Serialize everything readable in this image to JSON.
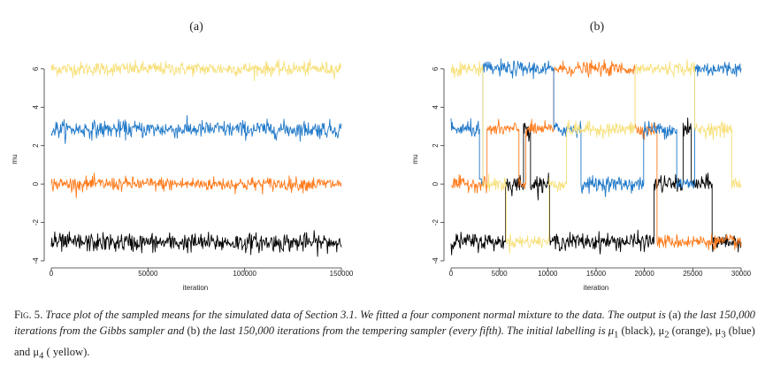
{
  "chart_data": [
    {
      "type": "line",
      "panel_label": "(a)",
      "xlabel": "iteration",
      "ylabel": "mu",
      "xlim": [
        0,
        150000
      ],
      "ylim": [
        -4,
        6.5
      ],
      "x_ticks": [
        0,
        50000,
        100000,
        150000
      ],
      "x_tick_labels": [
        "0",
        "50000",
        "100000",
        "150000"
      ],
      "y_ticks": [
        -4,
        -2,
        0,
        2,
        4,
        6
      ],
      "y_tick_labels": [
        "-4",
        "-2",
        "0",
        "2",
        "4",
        "6"
      ],
      "grid": false,
      "series": [
        {
          "color": "#f7e07a",
          "segments": [
            [
              0,
              150000,
              6.0
            ]
          ],
          "noise": 0.18
        },
        {
          "color": "#1f78c8",
          "segments": [
            [
              0,
              150000,
              2.85
            ]
          ],
          "noise": 0.22
        },
        {
          "color": "#ff7a1a",
          "segments": [
            [
              0,
              150000,
              0.0
            ]
          ],
          "noise": 0.18
        },
        {
          "color": "#000000",
          "segments": [
            [
              0,
              150000,
              -3.05
            ]
          ],
          "noise": 0.24
        }
      ]
    },
    {
      "type": "line",
      "panel_label": "(b)",
      "xlabel": "iteration",
      "ylabel": "mu",
      "xlim": [
        0,
        30000
      ],
      "ylim": [
        -4,
        6.5
      ],
      "x_ticks": [
        0,
        5000,
        10000,
        15000,
        20000,
        25000,
        30000
      ],
      "x_tick_labels": [
        "0",
        "5000",
        "10000",
        "15000",
        "20000",
        "25000",
        "30000"
      ],
      "y_ticks": [
        -4,
        -2,
        0,
        2,
        4,
        6
      ],
      "y_tick_labels": [
        "-4",
        "-2",
        "0",
        "2",
        "4",
        "6"
      ],
      "grid": false,
      "series": [
        {
          "color": "#000000",
          "noise": 0.22,
          "segments": [
            [
              0,
              5600,
              -3.0
            ],
            [
              5600,
              6200,
              0.0
            ],
            [
              6200,
              7500,
              0.0
            ],
            [
              7500,
              8200,
              2.85
            ],
            [
              8200,
              10200,
              0.0
            ],
            [
              10200,
              21000,
              -3.0
            ],
            [
              21000,
              24000,
              0.0
            ],
            [
              24000,
              24800,
              2.85
            ],
            [
              24800,
              27000,
              0.0
            ],
            [
              27000,
              30000,
              -3.0
            ]
          ]
        },
        {
          "color": "#ff7a1a",
          "noise": 0.18,
          "segments": [
            [
              0,
              3700,
              0.0
            ],
            [
              3700,
              7000,
              2.85
            ],
            [
              7000,
              7700,
              0.0
            ],
            [
              7700,
              10600,
              2.85
            ],
            [
              10600,
              19000,
              6.0
            ],
            [
              19000,
              21300,
              2.85
            ],
            [
              21300,
              27200,
              -3.0
            ],
            [
              27200,
              30000,
              -3.0
            ]
          ]
        },
        {
          "color": "#1f78c8",
          "noise": 0.2,
          "segments": [
            [
              0,
              2900,
              2.85
            ],
            [
              2900,
              3300,
              0.0
            ],
            [
              3300,
              10600,
              6.0
            ],
            [
              10600,
              13400,
              2.85
            ],
            [
              13400,
              19900,
              0.0
            ],
            [
              19900,
              23300,
              2.85
            ],
            [
              23300,
              25200,
              0.0
            ],
            [
              25200,
              30000,
              6.0
            ]
          ]
        },
        {
          "color": "#f7e07a",
          "noise": 0.18,
          "segments": [
            [
              0,
              3300,
              6.0
            ],
            [
              3300,
              5700,
              0.0
            ],
            [
              5700,
              10100,
              -3.0
            ],
            [
              10100,
              11900,
              0.0
            ],
            [
              11900,
              19000,
              2.85
            ],
            [
              19000,
              25200,
              6.0
            ],
            [
              25200,
              29000,
              2.85
            ],
            [
              29000,
              30000,
              0.0
            ]
          ]
        }
      ]
    }
  ],
  "caption": {
    "fig_label": "Fig. 5.",
    "part1": "Trace plot of the sampled means for the simulated data of Section 3.1. We fitted a four component normal mixture to the data. The output is",
    "part2": "(a)",
    "part3": "the last 150,000 iterations from the Gibbs sampler and",
    "part4": "(b)",
    "part5": "the last 150,000 iterations from the tempering sampler (every fifth). The initial labelling is μ",
    "sub1": "1",
    "part6": "(black), μ",
    "sub2": "2",
    "part7": "(orange), μ",
    "sub3": "3",
    "part8": "(blue) and μ",
    "sub4": "4",
    "part9": "( yellow)."
  }
}
